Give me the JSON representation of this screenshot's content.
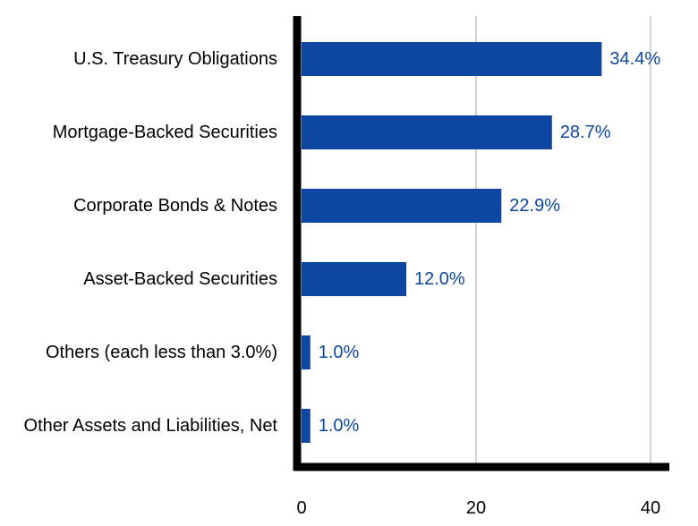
{
  "chart_data": {
    "type": "bar",
    "orientation": "horizontal",
    "categories": [
      "U.S. Treasury Obligations",
      "Mortgage-Backed Securities",
      "Corporate Bonds & Notes",
      "Asset-Backed Securities",
      "Others (each less than 3.0%)",
      "Other Assets and Liabilities, Net"
    ],
    "values": [
      34.4,
      28.7,
      22.9,
      12.0,
      1.0,
      1.0
    ],
    "data_labels": [
      "34.4%",
      "28.7%",
      "22.9%",
      "12.0%",
      "1.0%",
      "1.0%"
    ],
    "xlim": [
      0,
      43
    ],
    "xticks": [
      0,
      20,
      40
    ],
    "xtick_labels": [
      "0",
      "20",
      "40"
    ],
    "title": "",
    "xlabel": "",
    "ylabel": "",
    "grid": true,
    "legend": "none",
    "colors": {
      "bar": "#0d47a1",
      "data_label": "#0d47a1",
      "gridline": "#d3d3d3",
      "axis": "#000000"
    }
  }
}
